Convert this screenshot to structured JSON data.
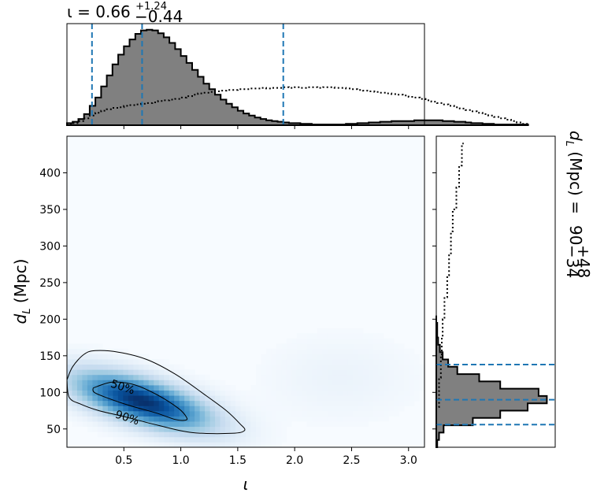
{
  "chart_data": [
    {
      "type": "heatmap",
      "panel": "joint",
      "xlabel": "ι",
      "ylabel": "d_L (Mpc)",
      "xlim": [
        0.0,
        3.14
      ],
      "ylim": [
        25,
        450
      ],
      "xticks": [
        0.5,
        1.0,
        1.5,
        2.0,
        2.5,
        3.0
      ],
      "xtick_labels": [
        "0.5",
        "1.0",
        "1.5",
        "2.0",
        "2.5",
        "3.0"
      ],
      "yticks": [
        50,
        100,
        150,
        200,
        250,
        300,
        350,
        400
      ],
      "ytick_labels": [
        "50",
        "100",
        "150",
        "200",
        "250",
        "300",
        "350",
        "400"
      ],
      "grid": false,
      "colormap": "Blues",
      "peak": {
        "x": 0.66,
        "y": 88
      },
      "contours": [
        {
          "label": "50%",
          "label_at": {
            "x": 0.48,
            "y": 108
          },
          "points": [
            [
              0.23,
              106
            ],
            [
              0.4,
              114
            ],
            [
              0.6,
              110
            ],
            [
              0.8,
              96
            ],
            [
              0.98,
              78
            ],
            [
              1.05,
              66
            ],
            [
              1.04,
              62
            ],
            [
              0.95,
              63
            ],
            [
              0.78,
              72
            ],
            [
              0.55,
              82
            ],
            [
              0.36,
              92
            ],
            [
              0.24,
              100
            ],
            [
              0.23,
              106
            ]
          ]
        },
        {
          "label": "90%",
          "label_at": {
            "x": 0.52,
            "y": 66
          },
          "points": [
            [
              0.0,
              117
            ],
            [
              0.05,
              135
            ],
            [
              0.15,
              152
            ],
            [
              0.25,
              157
            ],
            [
              0.45,
              155
            ],
            [
              0.7,
              145
            ],
            [
              0.95,
              125
            ],
            [
              1.2,
              98
            ],
            [
              1.4,
              75
            ],
            [
              1.52,
              57
            ],
            [
              1.56,
              48
            ],
            [
              1.45,
              44
            ],
            [
              1.1,
              45
            ],
            [
              0.8,
              55
            ],
            [
              0.5,
              67
            ],
            [
              0.28,
              75
            ],
            [
              0.12,
              84
            ],
            [
              0.02,
              93
            ],
            [
              0.0,
              117
            ]
          ]
        }
      ]
    },
    {
      "type": "bar",
      "panel": "top-marginal",
      "title": "ι = 0.66",
      "title_sup": "+1.24",
      "title_sub": "−0.44",
      "xlim": [
        0.0,
        3.14
      ],
      "bin_width": 0.05,
      "series": [
        {
          "style": "filled-step",
          "values": [
            3,
            5,
            9,
            16,
            28,
            40,
            56,
            72,
            88,
            102,
            114,
            124,
            132,
            137,
            138,
            137,
            133,
            127,
            119,
            110,
            100,
            90,
            80,
            70,
            60,
            52,
            44,
            37,
            31,
            26,
            21,
            17,
            14,
            11,
            9,
            7,
            6,
            5,
            4,
            3,
            3,
            2,
            2,
            1,
            1,
            1,
            1,
            1,
            1,
            2,
            2,
            3,
            3,
            4,
            4,
            5,
            5,
            6,
            6,
            6,
            6,
            7,
            7,
            7,
            7,
            7,
            6,
            6,
            5,
            5,
            4,
            3,
            3,
            2,
            2,
            1,
            1,
            1,
            1,
            1,
            1
          ]
        },
        {
          "style": "dotted-step",
          "values": [
            1,
            3,
            6,
            10,
            14,
            18,
            21,
            23,
            25,
            26,
            28,
            29,
            30,
            31,
            32,
            33,
            35,
            36,
            37,
            38,
            40,
            42,
            44,
            46,
            47,
            48,
            49,
            50,
            51,
            51,
            52,
            52,
            53,
            53,
            54,
            53,
            54,
            54,
            55,
            54,
            55,
            54,
            55,
            55,
            54,
            55,
            55,
            54,
            54,
            53,
            52,
            51,
            50,
            49,
            48,
            47,
            46,
            45,
            44,
            43,
            41,
            40,
            38,
            36,
            34,
            32,
            30,
            28,
            26,
            24,
            22,
            20,
            18,
            16,
            14,
            12,
            10,
            8,
            6,
            4,
            2
          ]
        }
      ],
      "markers": [
        0.22,
        0.66,
        1.9
      ]
    },
    {
      "type": "bar",
      "panel": "right-marginal",
      "orientation": "horizontal",
      "label": "d_L (Mpc) = 90",
      "label_sup": "+48",
      "label_sub": "−34",
      "ylim": [
        25,
        450
      ],
      "bin_width": 10,
      "series": [
        {
          "style": "filled-step",
          "edges": [
            25,
            35,
            45,
            55,
            65,
            75,
            85,
            95,
            105,
            115,
            125,
            135,
            145,
            155,
            165,
            175,
            185,
            195,
            205
          ],
          "values": [
            1,
            3,
            8,
            40,
            70,
            100,
            121,
            112,
            70,
            47,
            23,
            13,
            7,
            4,
            2,
            1,
            1,
            0
          ]
        },
        {
          "style": "dotted-step",
          "points": [
            [
              0,
              40
            ],
            [
              3,
              80
            ],
            [
              5,
              120
            ],
            [
              6,
              150
            ],
            [
              7,
              175
            ],
            [
              9,
              200
            ],
            [
              12,
              230
            ],
            [
              14,
              260
            ],
            [
              16,
              290
            ],
            [
              18,
              320
            ],
            [
              22,
              350
            ],
            [
              25,
              380
            ],
            [
              28,
              410
            ],
            [
              30,
              440
            ]
          ]
        }
      ],
      "markers": [
        56,
        90,
        138
      ]
    }
  ]
}
